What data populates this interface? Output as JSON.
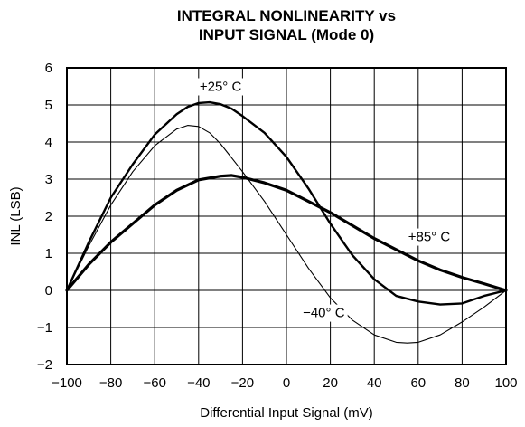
{
  "chart_data": {
    "type": "line",
    "title": [
      "INTEGRAL NONLINEARITY vs",
      "INPUT SIGNAL (Mode 0)"
    ],
    "xlabel": "Differential Input Signal (mV)",
    "ylabel": "INL (LSB)",
    "xlim": [
      -100,
      100
    ],
    "ylim": [
      -2,
      6
    ],
    "xticks": [
      -100,
      -80,
      -60,
      -40,
      -20,
      0,
      20,
      40,
      60,
      80,
      100
    ],
    "yticks": [
      -2,
      -1,
      0,
      1,
      2,
      3,
      4,
      5,
      6
    ],
    "xtick_labels": [
      "−100",
      "−80",
      "−60",
      "−40",
      "−20",
      "0",
      "20",
      "40",
      "60",
      "80",
      "100"
    ],
    "ytick_labels": [
      "−2",
      "−1",
      "0",
      "1",
      "2",
      "3",
      "4",
      "5",
      "6"
    ],
    "grid": true,
    "series": [
      {
        "name": "+25° C",
        "color": "#000000",
        "stroke": "thick",
        "x": [
          -100,
          -90,
          -80,
          -70,
          -60,
          -50,
          -45,
          -40,
          -35,
          -30,
          -25,
          -20,
          -10,
          0,
          10,
          20,
          30,
          40,
          50,
          60,
          70,
          80,
          90,
          100
        ],
        "y": [
          0,
          1.3,
          2.5,
          3.4,
          4.2,
          4.75,
          4.95,
          5.05,
          5.07,
          5.02,
          4.9,
          4.7,
          4.25,
          3.6,
          2.75,
          1.8,
          0.95,
          0.3,
          -0.15,
          -0.3,
          -0.38,
          -0.35,
          -0.15,
          0
        ]
      },
      {
        "name": "+85° C",
        "color": "#000000",
        "stroke": "thickest",
        "x": [
          -100,
          -90,
          -80,
          -70,
          -60,
          -50,
          -40,
          -30,
          -25,
          -20,
          -10,
          0,
          10,
          20,
          30,
          40,
          50,
          60,
          70,
          80,
          90,
          100
        ],
        "y": [
          0,
          0.7,
          1.3,
          1.8,
          2.3,
          2.7,
          2.98,
          3.08,
          3.1,
          3.05,
          2.9,
          2.7,
          2.4,
          2.1,
          1.75,
          1.4,
          1.1,
          0.8,
          0.55,
          0.35,
          0.18,
          0
        ]
      },
      {
        "name": "−40° C",
        "color": "#000000",
        "stroke": "thin",
        "x": [
          -100,
          -90,
          -80,
          -70,
          -60,
          -50,
          -45,
          -40,
          -35,
          -30,
          -20,
          -10,
          0,
          10,
          20,
          30,
          40,
          50,
          55,
          60,
          70,
          80,
          90,
          100
        ],
        "y": [
          0,
          1.2,
          2.3,
          3.2,
          3.9,
          4.35,
          4.45,
          4.42,
          4.25,
          3.95,
          3.2,
          2.4,
          1.5,
          0.6,
          -0.2,
          -0.8,
          -1.2,
          -1.4,
          -1.42,
          -1.4,
          -1.2,
          -0.85,
          -0.45,
          0
        ]
      }
    ],
    "annotations": [
      {
        "text": "+25° C",
        "x": -30,
        "y": 5.5
      },
      {
        "text": "+85° C",
        "x": 65,
        "y": 1.45
      },
      {
        "text": "−40° C",
        "x": 17,
        "y": -0.6
      }
    ]
  }
}
